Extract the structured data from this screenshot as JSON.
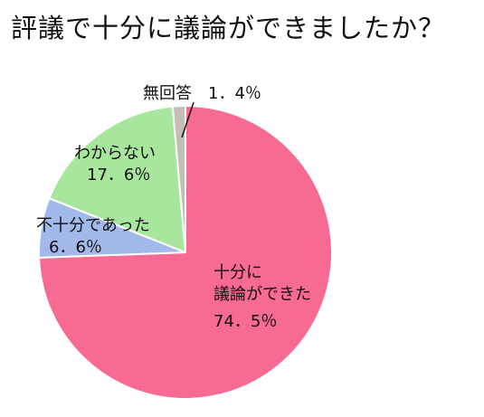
{
  "title": "評議で十分に議論ができましたか？",
  "chart_data": {
    "type": "pie",
    "start": "12 o'clock, clockwise",
    "slices": [
      {
        "label": "十分に議論ができた",
        "value": 74.5,
        "value_text": "74.5%",
        "color": "#F76A92"
      },
      {
        "label": "不十分であった",
        "value": 6.6,
        "value_text": "6.6%",
        "color": "#A3B9EA"
      },
      {
        "label": "わからない",
        "value": 17.6,
        "value_text": "17.6%",
        "color": "#A8E69D"
      },
      {
        "label": "無回答",
        "value": 1.4,
        "value_text": "1.4%",
        "color": "#C4BFB6"
      }
    ]
  },
  "labels": {
    "s0_line1": "十分に",
    "s0_line2": "議論ができた",
    "s0_value": "74．5％",
    "s1_line1": "不十分であった",
    "s1_value": "6．6％",
    "s2_line1": "わからない",
    "s2_value": "17．6％",
    "s3_line1": "無回答　1．4％"
  }
}
